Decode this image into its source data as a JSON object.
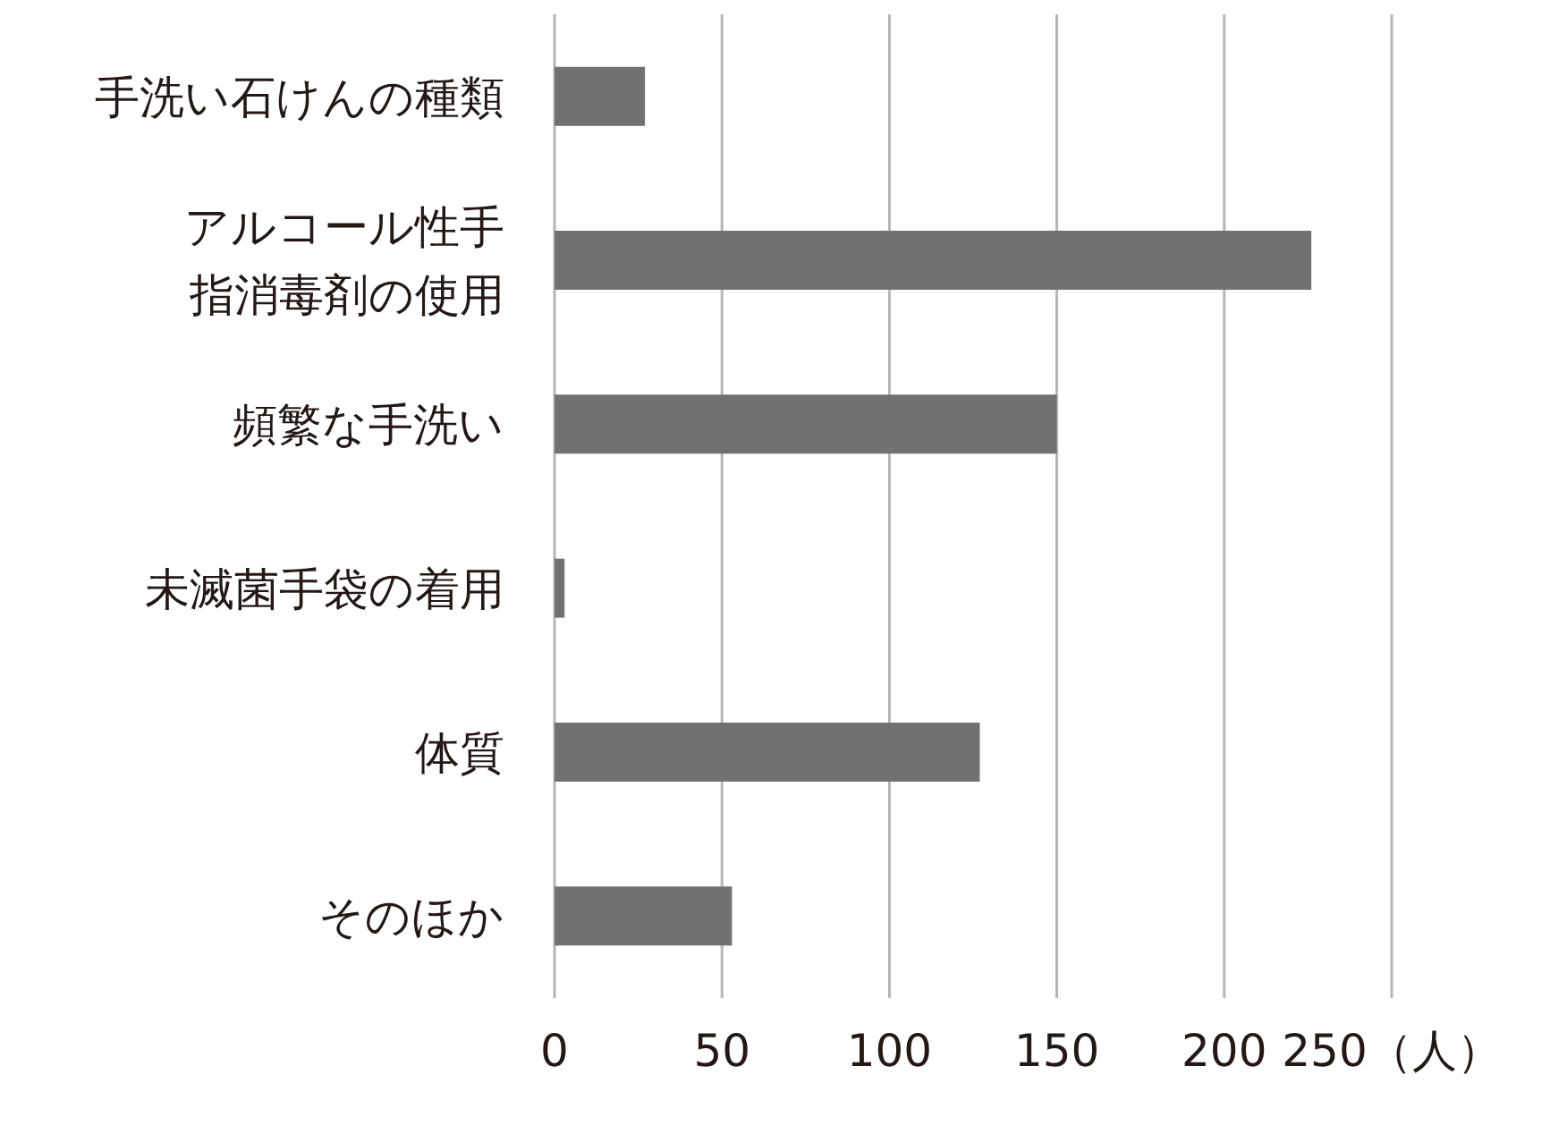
{
  "chart_data": {
    "type": "bar",
    "orientation": "horizontal",
    "categories": [
      "手洗い石けんの種類",
      "アルコール性手指消毒剤の使用",
      "頻繁な手洗い",
      "未滅菌手袋の着用",
      "体質",
      "そのほか"
    ],
    "values": [
      27,
      226,
      150,
      3,
      127,
      53
    ],
    "color": "#727171",
    "xlim": [
      0,
      250
    ],
    "xticks": [
      0,
      50,
      100,
      150,
      200,
      {
        "value": 250,
        "label": "250（人）"
      }
    ],
    "grid": "x"
  }
}
